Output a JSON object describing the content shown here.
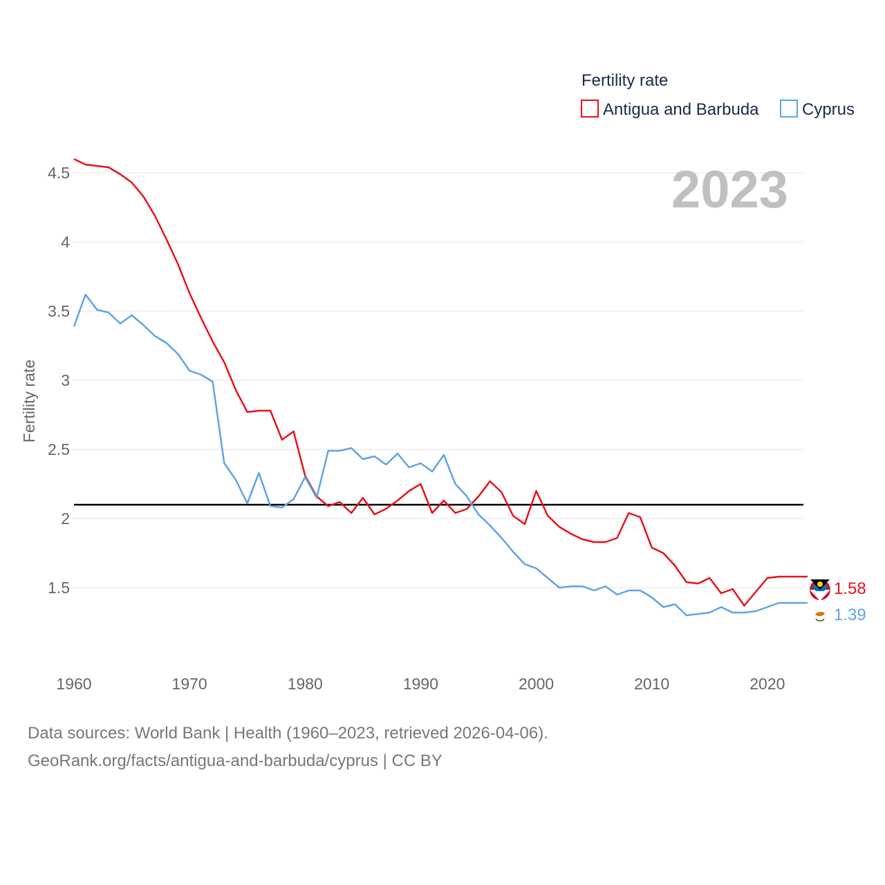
{
  "chart_data": {
    "type": "line",
    "title": "",
    "year_label": "2023",
    "xlabel": "",
    "ylabel": "Fertility rate",
    "xlim": [
      1960,
      2023
    ],
    "ylim": [
      1.15,
      4.85
    ],
    "x_ticks": [
      "1960",
      "1970",
      "1980",
      "1990",
      "2000",
      "2010",
      "2020"
    ],
    "y_ticks": [
      "1.5",
      "2",
      "2.5",
      "3",
      "3.5",
      "4",
      "4.5"
    ],
    "grid": true,
    "legend": {
      "title": "Fertility rate",
      "placement": "top-right",
      "items": [
        "Antigua and Barbuda",
        "Cyprus"
      ]
    },
    "reference_line": {
      "value": 2.1,
      "color": "#000000"
    },
    "x": [
      1960,
      1961,
      1962,
      1963,
      1964,
      1965,
      1966,
      1967,
      1968,
      1969,
      1970,
      1971,
      1972,
      1973,
      1974,
      1975,
      1976,
      1977,
      1978,
      1979,
      1980,
      1981,
      1982,
      1983,
      1984,
      1985,
      1986,
      1987,
      1988,
      1989,
      1990,
      1991,
      1992,
      1993,
      1994,
      1995,
      1996,
      1997,
      1998,
      1999,
      2000,
      2001,
      2002,
      2003,
      2004,
      2005,
      2006,
      2007,
      2008,
      2009,
      2010,
      2011,
      2012,
      2013,
      2014,
      2015,
      2016,
      2017,
      2018,
      2019,
      2020,
      2021,
      2022,
      2023
    ],
    "series": [
      {
        "name": "Antigua and Barbuda",
        "color": "#e8111a",
        "end_label": "1.58",
        "values": [
          4.6,
          4.56,
          4.55,
          4.54,
          4.49,
          4.43,
          4.33,
          4.19,
          4.02,
          3.84,
          3.63,
          3.45,
          3.28,
          3.13,
          2.93,
          2.77,
          2.78,
          2.78,
          2.57,
          2.63,
          2.31,
          2.16,
          2.09,
          2.12,
          2.04,
          2.15,
          2.03,
          2.07,
          2.13,
          2.2,
          2.25,
          2.04,
          2.13,
          2.04,
          2.07,
          2.16,
          2.27,
          2.19,
          2.02,
          1.96,
          2.2,
          2.02,
          1.94,
          1.89,
          1.85,
          1.83,
          1.83,
          1.86,
          2.04,
          2.01,
          1.79,
          1.75,
          1.66,
          1.54,
          1.53,
          1.57,
          1.46,
          1.49,
          1.37,
          1.47,
          1.57,
          1.58,
          1.58,
          1.58
        ]
      },
      {
        "name": "Cyprus",
        "color": "#5fa3e6",
        "end_label": "1.39",
        "values": [
          3.39,
          3.62,
          3.51,
          3.49,
          3.41,
          3.47,
          3.4,
          3.32,
          3.27,
          3.19,
          3.07,
          3.04,
          2.99,
          2.4,
          2.28,
          2.11,
          2.33,
          2.09,
          2.08,
          2.14,
          2.3,
          2.15,
          2.49,
          2.49,
          2.51,
          2.43,
          2.45,
          2.39,
          2.47,
          2.37,
          2.4,
          2.34,
          2.46,
          2.25,
          2.16,
          2.03,
          1.95,
          1.86,
          1.76,
          1.67,
          1.64,
          1.57,
          1.5,
          1.51,
          1.51,
          1.48,
          1.51,
          1.45,
          1.48,
          1.48,
          1.43,
          1.36,
          1.38,
          1.3,
          1.31,
          1.32,
          1.36,
          1.32,
          1.32,
          1.33,
          1.36,
          1.39,
          1.39,
          1.39
        ]
      }
    ]
  },
  "footer": {
    "line1": "Data sources: World Bank | Health (1960–2023, retrieved 2026-04-06).",
    "line2": "GeoRank.org/facts/antigua-and-barbuda/cyprus | CC BY"
  }
}
